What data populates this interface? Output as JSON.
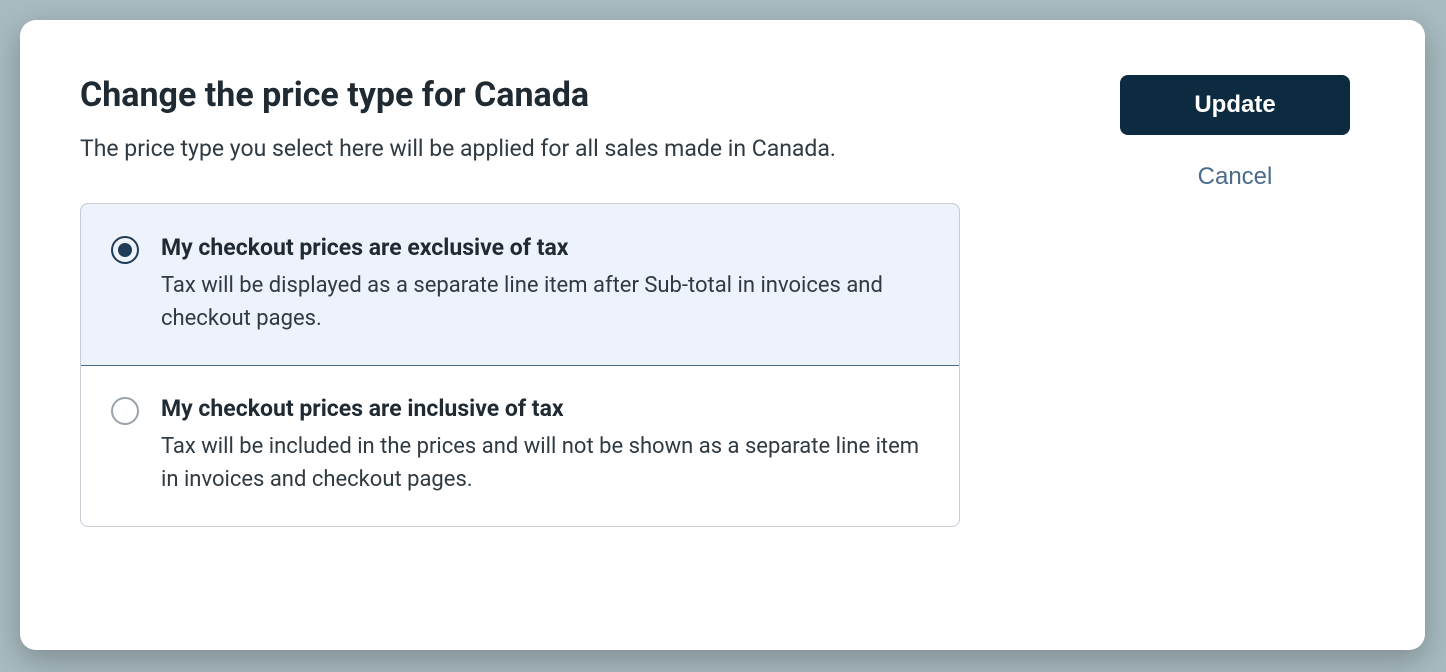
{
  "dialog": {
    "title": "Change the price type for Canada",
    "subtitle": "The price type you select here will be applied for all sales made in Canada.",
    "options": [
      {
        "title": "My checkout prices are exclusive of tax",
        "description": "Tax will be displayed as a separate line item after Sub-total in invoices and checkout pages.",
        "selected": true
      },
      {
        "title": "My checkout prices are inclusive of tax",
        "description": "Tax will be included in the prices and will not be shown as a separate line item in invoices and checkout pages.",
        "selected": false
      }
    ],
    "actions": {
      "primary": "Update",
      "cancel": "Cancel"
    }
  },
  "colors": {
    "dialog_bg": "#ffffff",
    "page_bg": "#a8bbc0",
    "primary_btn_bg": "#0d2b40",
    "primary_btn_text": "#ffffff",
    "cancel_text": "#4a6b8c",
    "text_primary": "#1f2a33",
    "text_secondary": "#2f3a42",
    "selected_bg": "#eef2fb",
    "selected_border": "#4a6b8c",
    "radio_border": "#9aa2ab",
    "radio_selected": "#1f3b57",
    "group_border": "#c7cdd4"
  }
}
